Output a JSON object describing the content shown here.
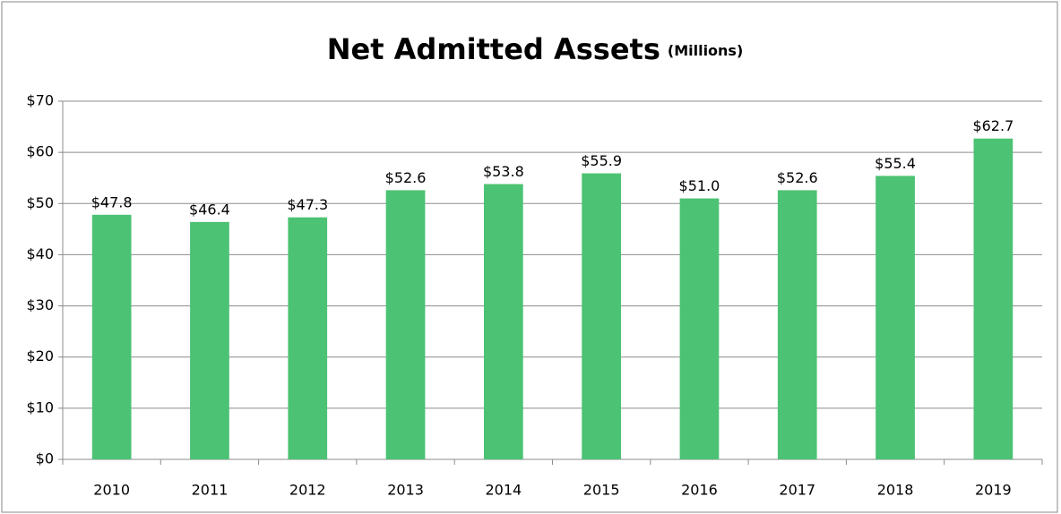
{
  "chart_data": {
    "type": "bar",
    "title": "Net Admitted Assets",
    "subtitle": "(Millions)",
    "categories": [
      "2010",
      "2011",
      "2012",
      "2013",
      "2014",
      "2015",
      "2016",
      "2017",
      "2018",
      "2019"
    ],
    "values": [
      47.8,
      46.4,
      47.3,
      52.6,
      53.8,
      55.9,
      51.0,
      52.6,
      55.4,
      62.7
    ],
    "value_labels": [
      "$47.8",
      "$46.4",
      "$47.3",
      "$52.6",
      "$53.8",
      "$55.9",
      "$51.0",
      "$52.6",
      "$55.4",
      "$62.7"
    ],
    "color": "#4cc274",
    "ylim": [
      0,
      70
    ],
    "yticks": [
      {
        "value": 0,
        "label": "$0"
      },
      {
        "value": 10,
        "label": "$10"
      },
      {
        "value": 20,
        "label": "$20"
      },
      {
        "value": 30,
        "label": "$30"
      },
      {
        "value": 40,
        "label": "$40"
      },
      {
        "value": 50,
        "label": "$50"
      },
      {
        "value": 60,
        "label": "$60"
      },
      {
        "value": 70,
        "label": "$70"
      }
    ],
    "grid": true
  }
}
